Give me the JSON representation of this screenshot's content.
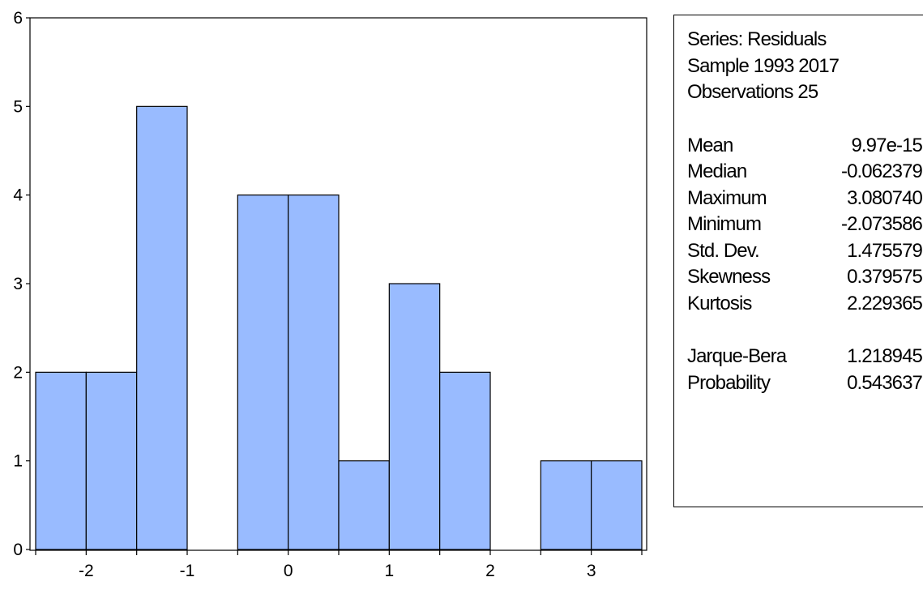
{
  "chart_data": {
    "type": "bar",
    "subtype": "histogram",
    "bin_width": 0.5,
    "bins": [
      {
        "from": -2.5,
        "to": -2.0,
        "count": 2
      },
      {
        "from": -2.0,
        "to": -1.5,
        "count": 2
      },
      {
        "from": -1.5,
        "to": -1.0,
        "count": 5
      },
      {
        "from": -1.0,
        "to": -0.5,
        "count": 0
      },
      {
        "from": -0.5,
        "to": 0.0,
        "count": 4
      },
      {
        "from": 0.0,
        "to": 0.5,
        "count": 4
      },
      {
        "from": 0.5,
        "to": 1.0,
        "count": 1
      },
      {
        "from": 1.0,
        "to": 1.5,
        "count": 3
      },
      {
        "from": 1.5,
        "to": 2.0,
        "count": 2
      },
      {
        "from": 2.0,
        "to": 2.5,
        "count": 0
      },
      {
        "from": 2.5,
        "to": 3.0,
        "count": 1
      },
      {
        "from": 3.0,
        "to": 3.5,
        "count": 1
      }
    ],
    "xlim": [
      -2.5,
      3.5
    ],
    "ylim": [
      0,
      6
    ],
    "x_ticks": [
      "-2",
      "-1",
      "0",
      "1",
      "2",
      "3"
    ],
    "x_tick_values": [
      -2,
      -1,
      0,
      1,
      2,
      3
    ],
    "y_ticks": [
      "0",
      "1",
      "2",
      "3",
      "4",
      "5",
      "6"
    ],
    "y_tick_values": [
      0,
      1,
      2,
      3,
      4,
      5,
      6
    ],
    "title": "",
    "xlabel": "",
    "ylabel": "",
    "grid": false,
    "bar_color": "#99bbff"
  },
  "stats": {
    "series": "Series: Residuals",
    "sample": "Sample 1993 2017",
    "observations": "Observations 25",
    "moments": [
      {
        "label": "Mean",
        "value": "9.97e-15"
      },
      {
        "label": "Median",
        "value": "-0.062379"
      },
      {
        "label": "Maximum",
        "value": "3.080740"
      },
      {
        "label": "Minimum",
        "value": "-2.073586"
      },
      {
        "label": "Std. Dev.",
        "value": "1.475579"
      },
      {
        "label": "Skewness",
        "value": "0.379575"
      },
      {
        "label": "Kurtosis",
        "value": "2.229365"
      }
    ],
    "tests": [
      {
        "label": "Jarque-Bera",
        "value": "1.218945"
      },
      {
        "label": "Probability",
        "value": "0.543637"
      }
    ]
  }
}
